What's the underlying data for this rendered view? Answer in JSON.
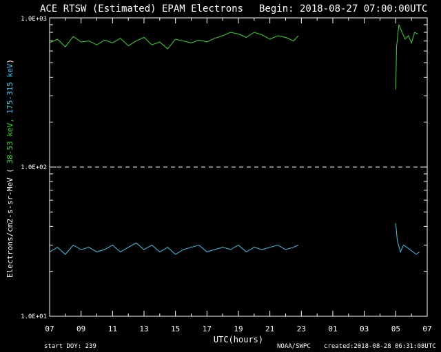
{
  "header": {
    "title": "ACE RTSW (Estimated) EPAM Electrons",
    "begin": "Begin: 2018-08-27 07:00:00UTC"
  },
  "footer": {
    "start_doy": "start DOY:  239",
    "agency": "NOAA/SWPC",
    "created": "created:2018-08-28 06:31:08UTC"
  },
  "colors": {
    "background": "#000000",
    "axes": "#ffffff",
    "low_energy": "#33dd22",
    "high_energy": "#33ccee"
  },
  "chart_data": {
    "type": "line",
    "title": "ACE RTSW (Estimated) EPAM Electrons",
    "xlabel": "UTC(hours)",
    "ylabel": {
      "prefix": "Electrons/cm2-s-sr-MeV  (",
      "low_label": " 38-53 keV,",
      "high_label": " 175-315 keV",
      "suffix": ")"
    },
    "y_scale": "log",
    "ylim": [
      10,
      1000
    ],
    "y_ticks": [
      {
        "value": 10,
        "label": "1.0E+01"
      },
      {
        "value": 100,
        "label": "1.0E+02"
      },
      {
        "value": 1000,
        "label": "1.0E+03"
      }
    ],
    "reference_line": 100,
    "xlim": [
      0,
      24
    ],
    "x_ticks": [
      {
        "value": 0,
        "label": "07"
      },
      {
        "value": 2,
        "label": "09"
      },
      {
        "value": 4,
        "label": "11"
      },
      {
        "value": 6,
        "label": "13"
      },
      {
        "value": 8,
        "label": "15"
      },
      {
        "value": 10,
        "label": "17"
      },
      {
        "value": 12,
        "label": "19"
      },
      {
        "value": 14,
        "label": "21"
      },
      {
        "value": 16,
        "label": "23"
      },
      {
        "value": 18,
        "label": "01"
      },
      {
        "value": 20,
        "label": "03"
      },
      {
        "value": 22,
        "label": "05"
      },
      {
        "value": 24,
        "label": "07"
      }
    ],
    "series": [
      {
        "color": "#33dd22",
        "x": [
          0.0,
          0.5,
          1.0,
          1.5,
          2.0,
          2.5,
          3.0,
          3.5,
          4.0,
          4.5,
          5.0,
          5.5,
          6.0,
          6.5,
          7.0,
          7.5,
          8.0,
          8.5,
          9.0,
          9.5,
          10.0,
          10.5,
          11.0,
          11.5,
          12.0,
          12.5,
          13.0,
          13.5,
          14.0,
          14.5,
          15.0,
          15.5,
          15.8,
          null,
          22.0,
          22.05,
          22.2,
          22.4,
          22.6,
          22.8,
          23.0,
          23.2,
          23.4
        ],
        "y": [
          680,
          720,
          640,
          750,
          690,
          700,
          660,
          710,
          680,
          730,
          650,
          700,
          740,
          660,
          690,
          620,
          720,
          700,
          680,
          710,
          690,
          730,
          760,
          800,
          780,
          740,
          800,
          770,
          720,
          760,
          740,
          700,
          760,
          null,
          330,
          640,
          900,
          800,
          720,
          760,
          680,
          800,
          780
        ]
      },
      {
        "color": "#33ccee",
        "x": [
          0.0,
          0.5,
          1.0,
          1.5,
          2.0,
          2.5,
          3.0,
          3.5,
          4.0,
          4.5,
          5.0,
          5.5,
          6.0,
          6.5,
          7.0,
          7.5,
          8.0,
          8.5,
          9.0,
          9.5,
          10.0,
          10.5,
          11.0,
          11.5,
          12.0,
          12.5,
          13.0,
          13.5,
          14.0,
          14.5,
          15.0,
          15.5,
          15.8,
          null,
          22.0,
          22.1,
          22.3,
          22.5,
          22.7,
          22.9,
          23.1,
          23.3,
          23.5
        ],
        "y": [
          27,
          29,
          26,
          30,
          28,
          29,
          27,
          28,
          30,
          27,
          29,
          31,
          28,
          30,
          27,
          29,
          26,
          28,
          29,
          30,
          27,
          28,
          29,
          28,
          30,
          27,
          29,
          28,
          29,
          30,
          28,
          29,
          30,
          null,
          42,
          32,
          27,
          30,
          29,
          28,
          27,
          26,
          27
        ]
      }
    ]
  }
}
